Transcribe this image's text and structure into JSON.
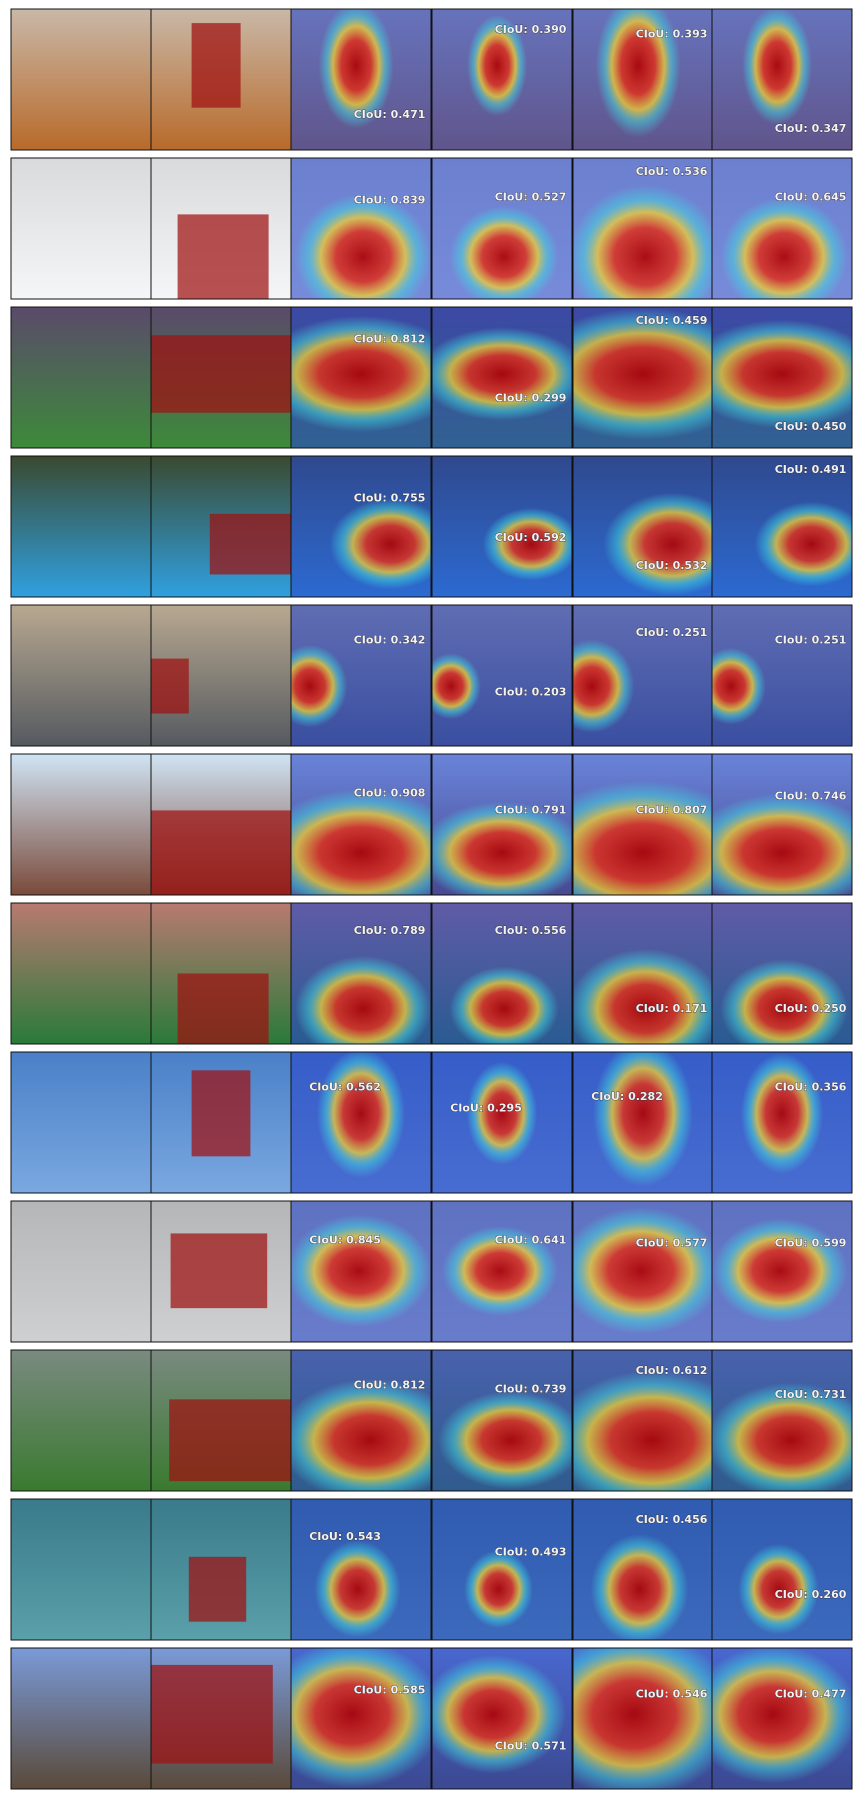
{
  "figure": {
    "rows": [
      {
        "labels": [
          "CIoU: 0.471",
          "CIoU: 0.390",
          "CIoU: 0.393",
          "CIoU: 0.347"
        ]
      },
      {
        "labels": [
          "CIoU: 0.839",
          "CIoU: 0.527",
          "CIoU: 0.536",
          "CIoU: 0.645"
        ]
      },
      {
        "labels": [
          "CIoU: 0.812",
          "CIoU: 0.299",
          "CIoU: 0.459",
          "CIoU: 0.450"
        ]
      },
      {
        "labels": [
          "CIoU: 0.755",
          "CIoU: 0.592",
          "CIoU: 0.532",
          "CIoU: 0.491"
        ]
      },
      {
        "labels": [
          "CIoU: 0.342",
          "CIoU: 0.203",
          "CIoU: 0.251",
          "CIoU: 0.251"
        ]
      },
      {
        "labels": [
          "CIoU: 0.908",
          "CIoU: 0.791",
          "CIoU: 0.807",
          "CIoU: 0.746"
        ]
      },
      {
        "labels": [
          "CIoU: 0.789",
          "CIoU: 0.556",
          "CIoU: 0.171",
          "CIoU: 0.250"
        ]
      },
      {
        "labels": [
          "CIoU: 0.562",
          "CIoU: 0.295",
          "CIoU: 0.282",
          "CIoU: 0.356"
        ]
      },
      {
        "labels": [
          "CIoU: 0.845",
          "CIoU: 0.641",
          "CIoU: 0.577",
          "CIoU: 0.599"
        ]
      },
      {
        "labels": [
          "CIoU: 0.812",
          "CIoU: 0.739",
          "CIoU: 0.612",
          "CIoU: 0.731"
        ]
      },
      {
        "labels": [
          "CIoU: 0.543",
          "CIoU: 0.493",
          "CIoU: 0.456",
          "CIoU: 0.260"
        ]
      },
      {
        "labels": [
          "CIoU: 0.585",
          "CIoU: 0.571",
          "CIoU: 0.546",
          "CIoU: 0.477"
        ]
      }
    ]
  }
}
